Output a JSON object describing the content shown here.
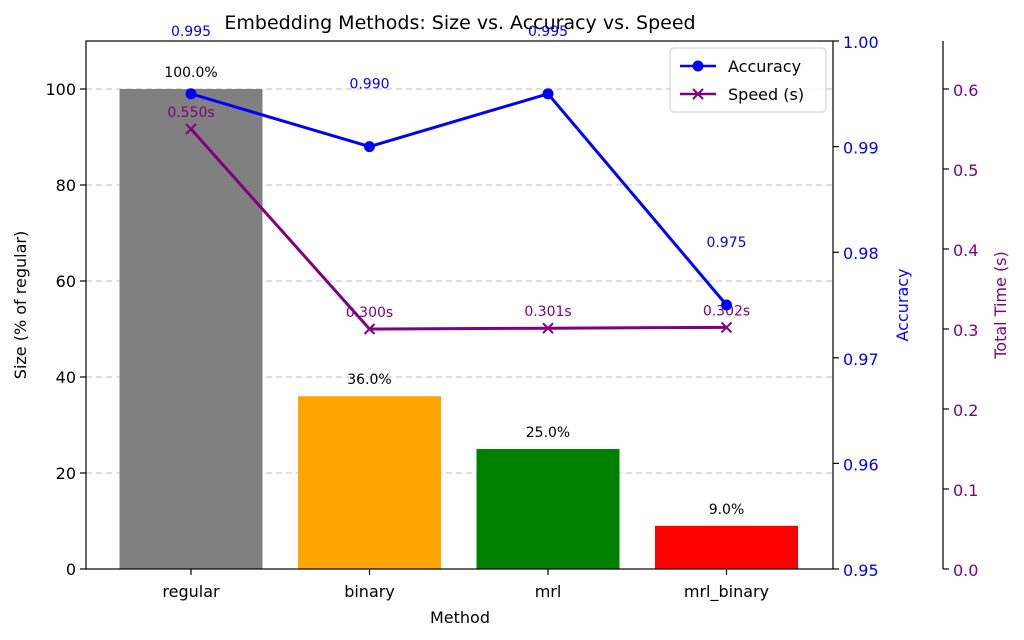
{
  "chart_data": {
    "type": "bar",
    "title": "Embedding Methods: Size vs. Accuracy vs. Speed",
    "xlabel": "Method",
    "categories": [
      "regular",
      "binary",
      "mrl",
      "mrl_binary"
    ],
    "size_axis": {
      "label": "Size (% of regular)",
      "ylim": [
        0,
        110
      ],
      "ticks": [
        0,
        20,
        40,
        60,
        80,
        100
      ],
      "tick_labels": [
        "0",
        "20",
        "40",
        "60",
        "80",
        "100"
      ],
      "grid": true
    },
    "accuracy_axis": {
      "label": "Accuracy",
      "ylim": [
        0.95,
        1.0
      ],
      "ticks": [
        0.95,
        0.96,
        0.97,
        0.98,
        0.99,
        1.0
      ],
      "tick_labels": [
        "0.95",
        "0.96",
        "0.97",
        "0.98",
        "0.99",
        "1.00"
      ],
      "color": "#0000ff"
    },
    "time_axis": {
      "label": "Total Time (s)",
      "ylim": [
        0,
        0.66
      ],
      "ticks": [
        0.0,
        0.1,
        0.2,
        0.3,
        0.4,
        0.5,
        0.6
      ],
      "tick_labels": [
        "0.0",
        "0.1",
        "0.2",
        "0.3",
        "0.4",
        "0.5",
        "0.6"
      ],
      "color": "#800080"
    },
    "size_series": {
      "values": [
        100,
        36,
        25,
        9
      ],
      "labels": [
        "100.0%",
        "36.0%",
        "25.0%",
        "9.0%"
      ],
      "colors": [
        "#808080",
        "#ffa500",
        "#008000",
        "#ff0000"
      ]
    },
    "accuracy_series": {
      "name": "Accuracy",
      "values": [
        0.995,
        0.99,
        0.995,
        0.975
      ],
      "labels": [
        "0.995",
        "0.990",
        "0.995",
        "0.975"
      ],
      "color": "#0000ff"
    },
    "speed_series": {
      "name": "Speed (s)",
      "values": [
        0.55,
        0.3,
        0.301,
        0.302
      ],
      "labels": [
        "0.550s",
        "0.300s",
        "0.301s",
        "0.302s"
      ],
      "color": "#800080"
    },
    "legend_position": "top-right"
  }
}
